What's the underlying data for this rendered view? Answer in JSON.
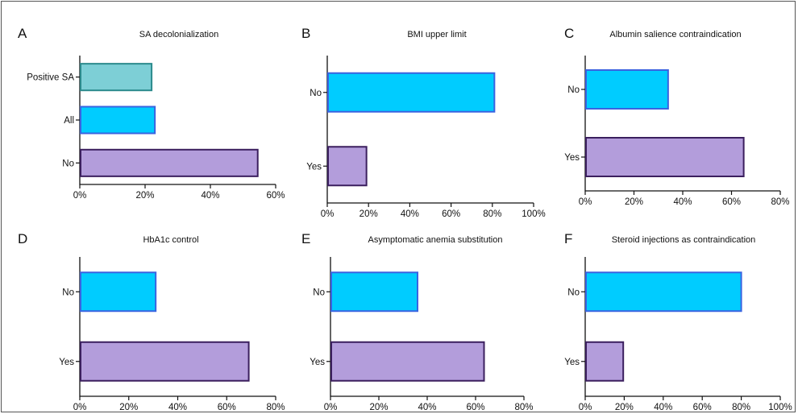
{
  "colors": {
    "teal_fill": "#7dcfd6",
    "teal_stroke": "#2b8a8c",
    "cyan_fill": "#00ccff",
    "cyan_stroke": "#3a63e0",
    "purple_fill": "#b39ddb",
    "purple_stroke": "#3b1f5e",
    "axis": "#111111"
  },
  "chart_data": [
    {
      "type": "bar",
      "orientation": "horizontal",
      "letter": "A",
      "title": "SA decolonialization",
      "categories": [
        "Positive SA",
        "All",
        "No"
      ],
      "values": [
        22,
        23,
        54.5
      ],
      "xlim": [
        0,
        60
      ],
      "xticks": [
        "0%",
        "20%",
        "40%",
        "60%"
      ],
      "bar_colors": [
        "teal",
        "cyan",
        "purple"
      ],
      "grid": false
    },
    {
      "type": "bar",
      "orientation": "horizontal",
      "letter": "B",
      "title": "BMI upper limit",
      "categories": [
        "No",
        "Yes"
      ],
      "values": [
        81,
        19
      ],
      "xlim": [
        0,
        100
      ],
      "xticks": [
        "0%",
        "20%",
        "40%",
        "60%",
        "80%",
        "100%"
      ],
      "bar_colors": [
        "cyan",
        "purple"
      ],
      "grid": false
    },
    {
      "type": "bar",
      "orientation": "horizontal",
      "letter": "C",
      "title": "Albumin salience contraindication",
      "categories": [
        "No",
        "Yes"
      ],
      "values": [
        34,
        65
      ],
      "xlim": [
        0,
        80
      ],
      "xticks": [
        "0%",
        "20%",
        "40%",
        "60%",
        "80%"
      ],
      "bar_colors": [
        "cyan",
        "purple"
      ],
      "grid": false
    },
    {
      "type": "bar",
      "orientation": "horizontal",
      "letter": "D",
      "title": "HbA1c control",
      "categories": [
        "No",
        "Yes"
      ],
      "values": [
        31,
        69
      ],
      "xlim": [
        0,
        80
      ],
      "xticks": [
        "0%",
        "20%",
        "40%",
        "60%",
        "80%"
      ],
      "bar_colors": [
        "cyan",
        "purple"
      ],
      "grid": false
    },
    {
      "type": "bar",
      "orientation": "horizontal",
      "letter": "E",
      "title": "Asymptomatic anemia substitution",
      "categories": [
        "No",
        "Yes"
      ],
      "values": [
        36,
        63.5
      ],
      "xlim": [
        0,
        80
      ],
      "xticks": [
        "0%",
        "20%",
        "40%",
        "60%",
        "80%"
      ],
      "bar_colors": [
        "cyan",
        "purple"
      ],
      "grid": false
    },
    {
      "type": "bar",
      "orientation": "horizontal",
      "letter": "F",
      "title": "Steroid injections as contraindication",
      "categories": [
        "No",
        "Yes"
      ],
      "values": [
        80,
        19.5
      ],
      "xlim": [
        0,
        100
      ],
      "xticks": [
        "0%",
        "20%",
        "40%",
        "60%",
        "80%",
        "100%"
      ],
      "bar_colors": [
        "cyan",
        "purple"
      ],
      "grid": false
    }
  ]
}
